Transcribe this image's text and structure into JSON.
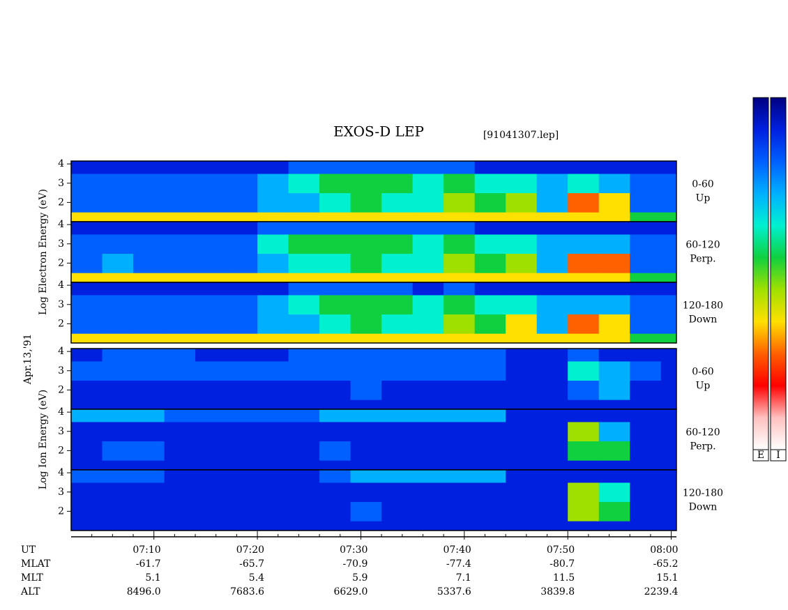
{
  "chart_data": {
    "type": "heatmap",
    "title": "EXOS-D LEP",
    "subtitle": "[91041307.lep]",
    "date": "Apr.13,'91",
    "xlim": [
      2,
      60.5
    ],
    "xbins": [
      2,
      5,
      8,
      11,
      14,
      17,
      20,
      23,
      26,
      29,
      32,
      35,
      38,
      41,
      44,
      47,
      50,
      53,
      56,
      59,
      60.5
    ],
    "xticks": [
      {
        "value": 10,
        "label": "07:10"
      },
      {
        "value": 20,
        "label": "07:20"
      },
      {
        "value": 30,
        "label": "07:30"
      },
      {
        "value": 40,
        "label": "07:40"
      },
      {
        "value": 50,
        "label": "07:50"
      },
      {
        "value": 60,
        "label": "08:00"
      }
    ],
    "xminorticks": [
      4,
      6,
      8,
      12,
      14,
      16,
      18,
      22,
      24,
      26,
      28,
      32,
      34,
      36,
      38,
      42,
      44,
      46,
      48,
      52,
      54,
      56,
      58
    ],
    "xlabel": "UT",
    "ephemeris": [
      {
        "name": "MLAT",
        "values": [
          "-61.7",
          "-65.7",
          "-70.9",
          "-77.4",
          "-80.7",
          "-65.2"
        ]
      },
      {
        "name": "MLT",
        "values": [
          "5.1",
          "5.4",
          "5.9",
          "7.1",
          "11.5",
          "15.1"
        ]
      },
      {
        "name": "ALT",
        "values": [
          "8496.0",
          "7683.6",
          "6629.0",
          "5337.6",
          "3839.8",
          "2239.4"
        ]
      }
    ],
    "ylim": [
      1,
      4.15
    ],
    "yticks": [
      2,
      3,
      4
    ],
    "ybins": [
      1,
      1.5,
      2.5,
      3.5,
      4.15
    ],
    "colorscale": [
      "#000080",
      "#0020e0",
      "#0060ff",
      "#00b0ff",
      "#00f0d0",
      "#10d040",
      "#a0e000",
      "#ffe000",
      "#ff6000",
      "#ff0000",
      "#ffc0c0",
      "#ffffff"
    ],
    "colorbars": [
      "E",
      "I"
    ],
    "groups": [
      {
        "ylabel": "Log Electron Energy (eV)",
        "panels": [
          {
            "label": [
              "0-60",
              "Up"
            ],
            "values": [
              [
                7,
                7,
                7,
                7,
                7,
                7,
                7,
                7,
                7,
                7,
                7,
                7,
                7,
                7,
                7,
                7,
                7,
                7,
                5,
                5
              ],
              [
                2,
                2,
                2,
                2,
                2,
                2,
                3,
                3,
                4,
                5,
                4,
                4,
                6,
                5,
                6,
                3,
                8,
                7,
                2,
                2
              ],
              [
                2,
                2,
                2,
                2,
                2,
                2,
                3,
                4,
                5,
                5,
                5,
                4,
                5,
                4,
                4,
                3,
                4,
                3,
                2,
                2
              ],
              [
                1,
                1,
                1,
                1,
                1,
                1,
                1,
                2,
                2,
                2,
                2,
                2,
                2,
                1,
                1,
                1,
                1,
                1,
                1,
                1
              ]
            ]
          },
          {
            "label": [
              "60-120",
              "Perp."
            ],
            "values": [
              [
                7,
                7,
                7,
                7,
                7,
                7,
                7,
                7,
                7,
                7,
                7,
                7,
                7,
                7,
                7,
                7,
                7,
                7,
                5,
                5
              ],
              [
                2,
                3,
                2,
                2,
                2,
                2,
                3,
                4,
                4,
                5,
                4,
                4,
                6,
                5,
                6,
                3,
                8,
                8,
                2,
                2
              ],
              [
                2,
                2,
                2,
                2,
                2,
                2,
                4,
                5,
                5,
                5,
                5,
                4,
                5,
                4,
                4,
                3,
                3,
                3,
                2,
                2
              ],
              [
                1,
                1,
                1,
                1,
                1,
                1,
                2,
                2,
                2,
                2,
                2,
                2,
                2,
                1,
                1,
                1,
                1,
                1,
                1,
                1
              ]
            ]
          },
          {
            "label": [
              "120-180",
              "Down"
            ],
            "values": [
              [
                7,
                7,
                7,
                7,
                7,
                7,
                7,
                7,
                7,
                7,
                7,
                7,
                7,
                7,
                7,
                7,
                7,
                7,
                5,
                5
              ],
              [
                2,
                2,
                2,
                2,
                2,
                2,
                3,
                3,
                4,
                5,
                4,
                4,
                6,
                5,
                7,
                3,
                8,
                7,
                2,
                2
              ],
              [
                2,
                2,
                2,
                2,
                2,
                2,
                3,
                4,
                5,
                5,
                5,
                4,
                5,
                4,
                4,
                3,
                3,
                3,
                2,
                2
              ],
              [
                1,
                1,
                1,
                1,
                1,
                1,
                1,
                2,
                2,
                2,
                2,
                1,
                2,
                1,
                1,
                1,
                1,
                1,
                1,
                1
              ]
            ]
          }
        ]
      },
      {
        "ylabel": "Log Ion Energy (eV)",
        "panels": [
          {
            "label": [
              "0-60",
              "Up"
            ],
            "values": [
              [
                1,
                1,
                1,
                1,
                1,
                1,
                1,
                1,
                1,
                1,
                1,
                1,
                1,
                1,
                1,
                1,
                1,
                1,
                1,
                1
              ],
              [
                1,
                1,
                1,
                1,
                1,
                1,
                1,
                1,
                1,
                2,
                1,
                1,
                1,
                1,
                1,
                1,
                2,
                3,
                1,
                1
              ],
              [
                2,
                2,
                2,
                2,
                2,
                2,
                2,
                2,
                2,
                2,
                2,
                2,
                2,
                2,
                1,
                1,
                4,
                3,
                2,
                1
              ],
              [
                1,
                2,
                2,
                2,
                1,
                1,
                1,
                2,
                2,
                2,
                2,
                2,
                2,
                2,
                1,
                1,
                2,
                1,
                1,
                1
              ]
            ]
          },
          {
            "label": [
              "60-120",
              "Perp."
            ],
            "values": [
              [
                1,
                1,
                1,
                1,
                1,
                1,
                1,
                1,
                1,
                1,
                1,
                1,
                1,
                1,
                1,
                1,
                1,
                1,
                1,
                1
              ],
              [
                1,
                2,
                2,
                1,
                1,
                1,
                1,
                1,
                2,
                1,
                1,
                1,
                1,
                1,
                1,
                1,
                5,
                5,
                1,
                1
              ],
              [
                1,
                1,
                1,
                1,
                1,
                1,
                1,
                1,
                1,
                1,
                1,
                1,
                1,
                1,
                1,
                1,
                6,
                3,
                1,
                1
              ],
              [
                3,
                3,
                3,
                2,
                2,
                2,
                2,
                2,
                3,
                3,
                3,
                3,
                3,
                3,
                1,
                1,
                1,
                1,
                1,
                1
              ]
            ]
          },
          {
            "label": [
              "120-180",
              "Down"
            ],
            "values": [
              [
                1,
                1,
                1,
                1,
                1,
                1,
                1,
                1,
                1,
                1,
                1,
                1,
                1,
                1,
                1,
                1,
                1,
                1,
                1,
                1
              ],
              [
                1,
                1,
                1,
                1,
                1,
                1,
                1,
                1,
                1,
                2,
                1,
                1,
                1,
                1,
                1,
                1,
                6,
                5,
                1,
                1
              ],
              [
                1,
                1,
                1,
                1,
                1,
                1,
                1,
                1,
                1,
                1,
                1,
                1,
                1,
                1,
                1,
                1,
                6,
                4,
                1,
                1
              ],
              [
                2,
                2,
                2,
                1,
                1,
                1,
                1,
                1,
                2,
                3,
                3,
                3,
                3,
                3,
                1,
                1,
                1,
                1,
                1,
                1
              ]
            ]
          }
        ]
      }
    ]
  }
}
